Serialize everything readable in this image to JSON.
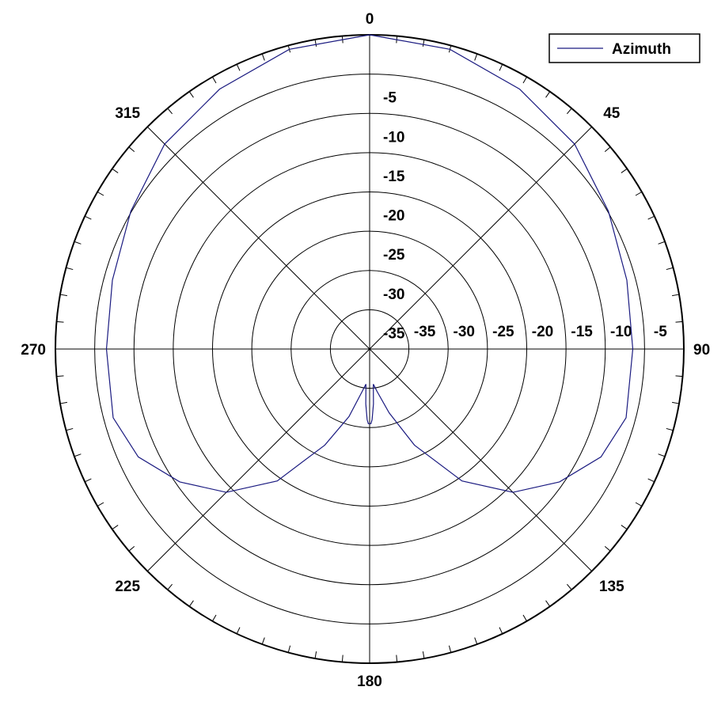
{
  "chart_data": {
    "type": "polar-line",
    "angle_ticks": [
      "0",
      "45",
      "90",
      "135",
      "180",
      "225",
      "270",
      "315"
    ],
    "radial_range": [
      -40,
      0
    ],
    "radial_ticks": [
      "-5",
      "-10",
      "-15",
      "-20",
      "-25",
      "-30",
      "-35"
    ],
    "grid": true,
    "legend_position": "top-right",
    "series": [
      {
        "name": "Azimuth",
        "color": "#1a1a80",
        "theta": [
          0,
          15,
          30,
          45,
          60,
          75,
          90,
          105,
          115,
          125,
          135,
          145,
          155,
          163,
          170,
          174,
          176,
          178,
          179,
          180,
          181,
          182,
          184,
          186,
          190,
          197,
          205,
          215,
          225,
          235,
          245,
          255,
          270,
          285,
          300,
          315,
          330,
          345,
          360
        ],
        "r": [
          0.0,
          -0.5,
          -1.8,
          -3.1,
          -4.9,
          -6.1,
          -6.5,
          -6.2,
          -7.5,
          -10.5,
          -14.2,
          -19.5,
          -26.5,
          -31.5,
          -34.5,
          -35.5,
          -33.0,
          -31.0,
          -30.5,
          -30.5,
          -30.5,
          -31.0,
          -33.0,
          -35.5,
          -34.5,
          -31.0,
          -26.5,
          -19.5,
          -14.2,
          -10.5,
          -7.5,
          -6.2,
          -6.5,
          -6.1,
          -4.9,
          -3.1,
          -1.8,
          -0.5,
          0.0
        ]
      }
    ]
  }
}
